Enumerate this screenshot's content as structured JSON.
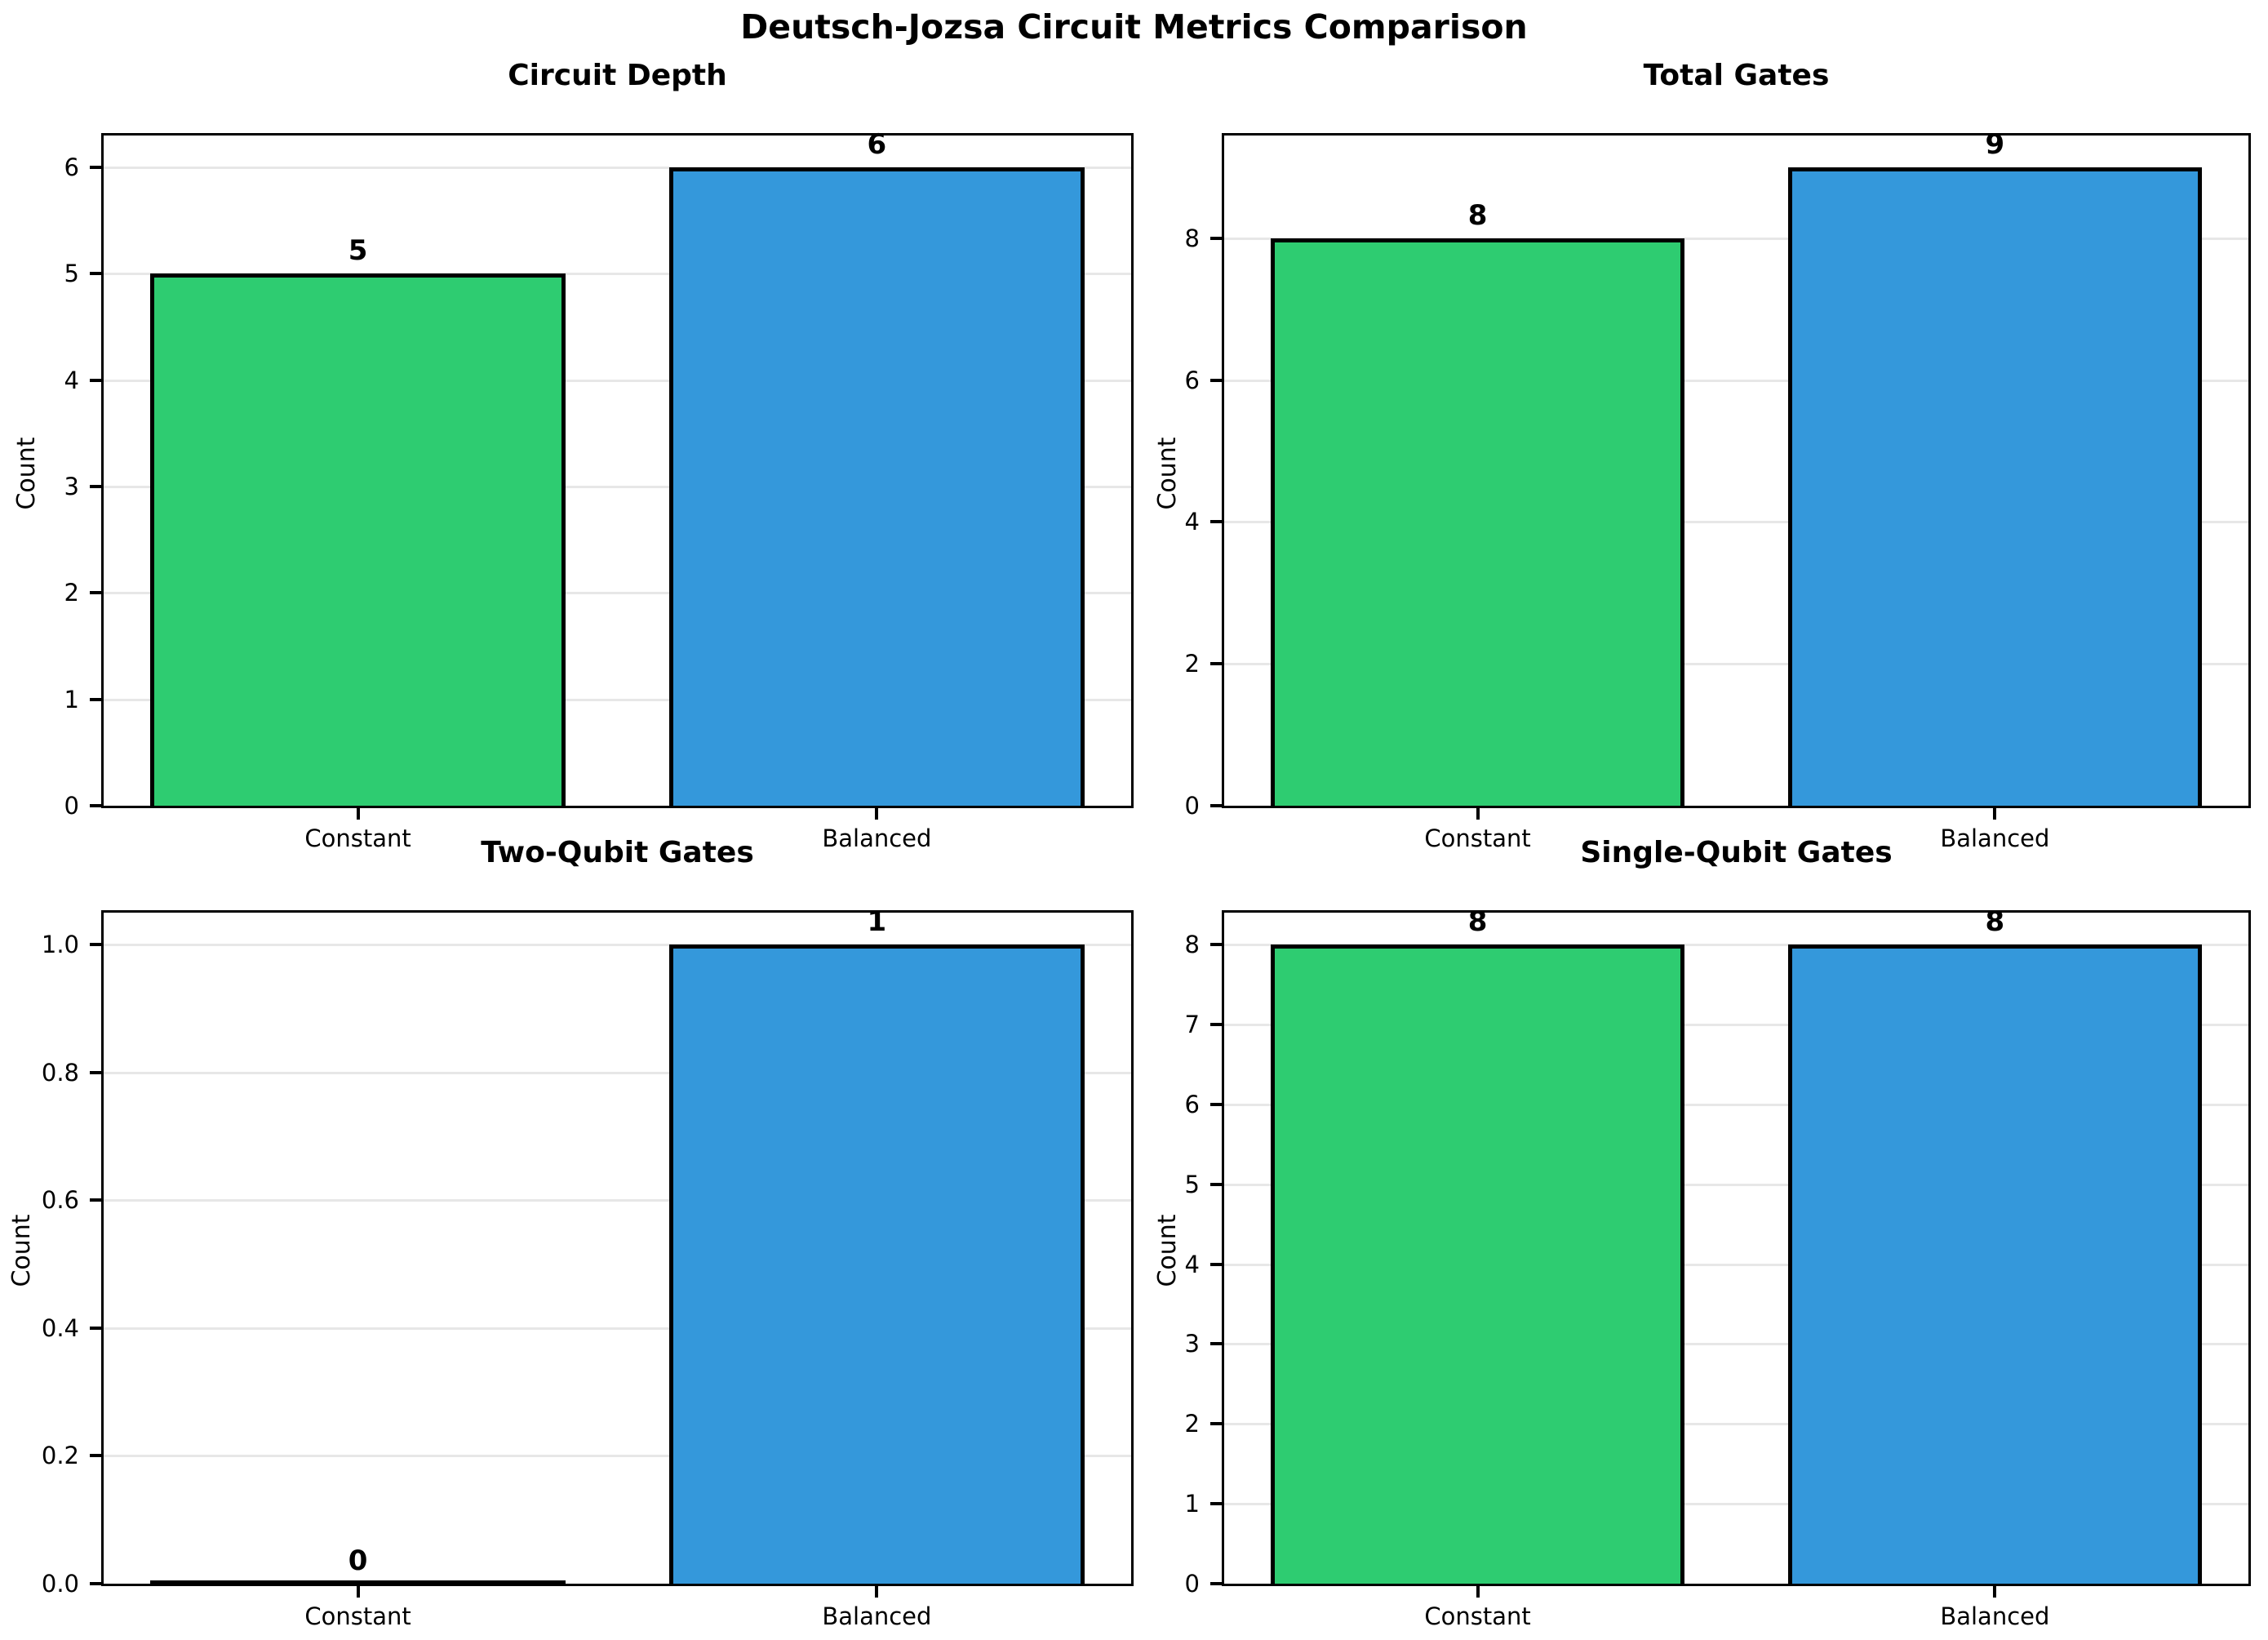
{
  "figure": {
    "title": "Deutsch-Jozsa Circuit Metrics Comparison"
  },
  "colors": {
    "constant_bar": "#2ecc71",
    "balanced_bar": "#3498db",
    "bar_edge": "#000000",
    "grid": "#e7e7e7",
    "text": "#000000",
    "background": "#ffffff"
  },
  "chart_data": [
    {
      "type": "bar",
      "title": "Circuit Depth",
      "categories": [
        "Constant",
        "Balanced"
      ],
      "values": [
        5,
        6
      ],
      "value_labels": [
        "5",
        "6"
      ],
      "bar_colors": [
        "#2ecc71",
        "#3498db"
      ],
      "xlabel": "",
      "ylabel": "Count",
      "ylim": [
        0,
        6.3
      ],
      "yticks": [
        0,
        1,
        2,
        3,
        4,
        5,
        6
      ],
      "ytick_labels": [
        "0",
        "1",
        "2",
        "3",
        "4",
        "5",
        "6"
      ],
      "grid": true,
      "legend": false
    },
    {
      "type": "bar",
      "title": "Total Gates",
      "categories": [
        "Constant",
        "Balanced"
      ],
      "values": [
        8,
        9
      ],
      "value_labels": [
        "8",
        "9"
      ],
      "bar_colors": [
        "#2ecc71",
        "#3498db"
      ],
      "xlabel": "",
      "ylabel": "Count",
      "ylim": [
        0,
        9.45
      ],
      "yticks": [
        0,
        2,
        4,
        6,
        8
      ],
      "ytick_labels": [
        "0",
        "2",
        "4",
        "6",
        "8"
      ],
      "grid": true,
      "legend": false
    },
    {
      "type": "bar",
      "title": "Two-Qubit Gates",
      "categories": [
        "Constant",
        "Balanced"
      ],
      "values": [
        0,
        1
      ],
      "value_labels": [
        "0",
        "1"
      ],
      "bar_colors": [
        "#2ecc71",
        "#3498db"
      ],
      "xlabel": "",
      "ylabel": "Count",
      "ylim": [
        0,
        1.05
      ],
      "yticks": [
        0,
        0.2,
        0.4,
        0.6,
        0.8,
        1.0
      ],
      "ytick_labels": [
        "0.0",
        "0.2",
        "0.4",
        "0.6",
        "0.8",
        "1.0"
      ],
      "grid": true,
      "legend": false
    },
    {
      "type": "bar",
      "title": "Single-Qubit Gates",
      "categories": [
        "Constant",
        "Balanced"
      ],
      "values": [
        8,
        8
      ],
      "value_labels": [
        "8",
        "8"
      ],
      "bar_colors": [
        "#2ecc71",
        "#3498db"
      ],
      "xlabel": "",
      "ylabel": "Count",
      "ylim": [
        0,
        8.4
      ],
      "yticks": [
        0,
        1,
        2,
        3,
        4,
        5,
        6,
        7,
        8
      ],
      "ytick_labels": [
        "0",
        "1",
        "2",
        "3",
        "4",
        "5",
        "6",
        "7",
        "8"
      ],
      "grid": true,
      "legend": false
    }
  ]
}
